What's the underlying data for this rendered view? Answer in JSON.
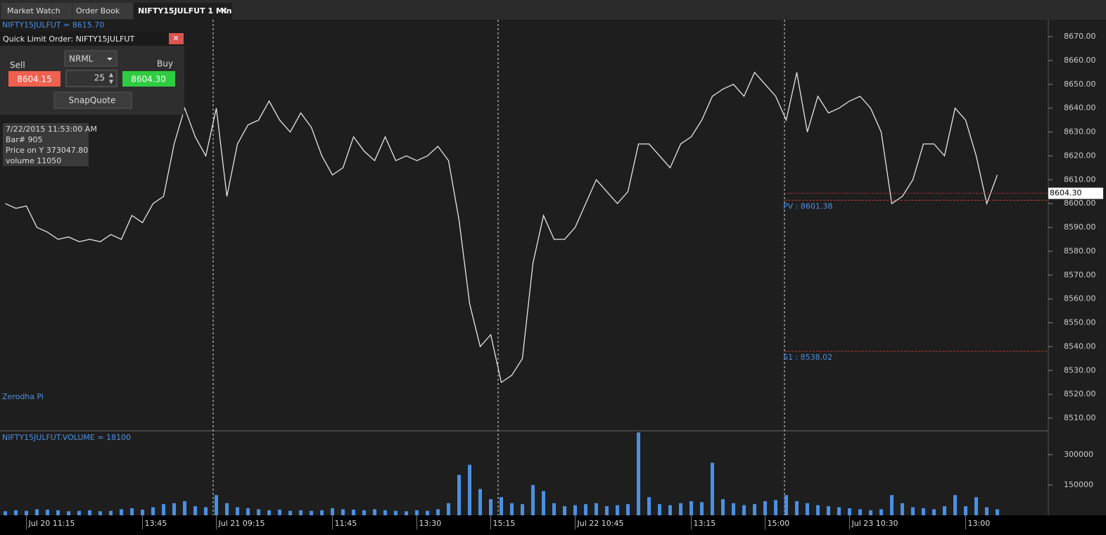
{
  "tabs": [
    "Market Watch",
    "Order Book",
    "NIFTY15JULFUT 1 Min"
  ],
  "order_panel": {
    "title": "Quick Limit Order:  NIFTY15JULFUT",
    "sell_label": "Sell",
    "buy_label": "Buy",
    "product": "NRML",
    "quantity": "25",
    "sell_price": "8604.15",
    "buy_price": "8604.30",
    "button": "SnapQuote"
  },
  "info_box": [
    "7/22/2015 11:53:00 AM",
    "Bar# 905",
    "Price on Y  373047.80",
    "volume  11050"
  ],
  "watermark": "Zerodha Pi",
  "chart_data": [
    {
      "type": "line",
      "title": "NIFTY15JULFUT = 8615.70",
      "color": "#e6e6e6",
      "categories": [
        null,
        null,
        "Jul 20 11:15",
        null,
        null,
        null,
        null,
        null,
        null,
        null,
        null,
        null,
        null,
        "13:45",
        null,
        null,
        null,
        null,
        null,
        null,
        "Jul 21 09:15",
        null,
        null,
        null,
        null,
        null,
        null,
        null,
        null,
        null,
        null,
        "11:45",
        null,
        null,
        null,
        null,
        null,
        null,
        null,
        "13:30",
        null,
        null,
        null,
        null,
        null,
        null,
        "15:15",
        null,
        null,
        null,
        null,
        null,
        null,
        null,
        "Jul 22 10:45",
        null,
        null,
        null,
        null,
        null,
        null,
        null,
        null,
        null,
        null,
        "13:15",
        null,
        null,
        null,
        null,
        null,
        null,
        "15:00",
        null,
        null,
        null,
        null,
        null,
        null,
        null,
        "Jul 23 10:30",
        null,
        null,
        null,
        null,
        null,
        null,
        null,
        null,
        null,
        null,
        "13:00",
        null,
        null,
        null,
        null,
        null,
        null,
        null
      ],
      "values": [
        8600,
        8598,
        8599,
        8590,
        8588,
        8585,
        8586,
        8584,
        8585,
        8584,
        8587,
        8585,
        8595,
        8592,
        8600,
        8603,
        8625,
        8640,
        8628,
        8620,
        8640,
        8603,
        8625,
        8633,
        8635,
        8643,
        8635,
        8630,
        8638,
        8632,
        8620,
        8612,
        8615,
        8628,
        8622,
        8618,
        8628,
        8618,
        8620,
        8618,
        8620,
        8624,
        8618,
        8593,
        8558,
        8540,
        8545,
        8525,
        8528,
        8535,
        8575,
        8595,
        8585,
        8585,
        8590,
        8600,
        8610,
        8605,
        8600,
        8605,
        8625,
        8625,
        8620,
        8615,
        8625,
        8628,
        8635,
        8645,
        8648,
        8650,
        8645,
        8655,
        8650,
        8645,
        8635,
        8655,
        8630,
        8645,
        8638,
        8640,
        8643,
        8645,
        8640,
        8630,
        8600,
        8603,
        8610,
        8625,
        8625,
        8620,
        8640,
        8635,
        8620,
        8600,
        8612,
        null,
        null,
        null,
        null
      ],
      "ylim": [
        8504.7,
        8677.1
      ],
      "yticks": [
        {
          "value": 8510,
          "label": "8510.00"
        },
        {
          "value": 8520,
          "label": "8520.00"
        },
        {
          "value": 8530,
          "label": "8530.00"
        },
        {
          "value": 8540,
          "label": "8540.00"
        },
        {
          "value": 8550,
          "label": "8550.00"
        },
        {
          "value": 8560,
          "label": "8560.00"
        },
        {
          "value": 8570,
          "label": "8570.00"
        },
        {
          "value": 8580,
          "label": "8580.00"
        },
        {
          "value": 8590,
          "label": "8590.00"
        },
        {
          "value": 8600,
          "label": "8600.00"
        },
        {
          "value": 8610,
          "label": "8610.00"
        },
        {
          "value": 8620,
          "label": "8620.00"
        },
        {
          "value": 8630,
          "label": "8630.00"
        },
        {
          "value": 8640,
          "label": "8640.00"
        },
        {
          "value": 8650,
          "label": "8650.00"
        },
        {
          "value": 8660,
          "label": "8660.00"
        },
        {
          "value": 8670,
          "label": "8670.00"
        }
      ],
      "levels": [
        {
          "label": "PV : 8601.38",
          "value": 8601.38
        },
        {
          "label": "S1 : 8538.02",
          "value": 8538.02
        }
      ],
      "last_price": {
        "value": 8604.3,
        "label": "8604.30"
      }
    },
    {
      "type": "bar",
      "title": "NIFTY15JULFUT.VOLUME = 18100",
      "color": "#4a90e2",
      "values": [
        20000,
        25000,
        22000,
        30000,
        28000,
        25000,
        20000,
        22000,
        25000,
        20000,
        22000,
        30000,
        35000,
        28000,
        40000,
        55000,
        60000,
        70000,
        45000,
        40000,
        100000,
        60000,
        40000,
        35000,
        30000,
        25000,
        28000,
        22000,
        25000,
        22000,
        25000,
        35000,
        30000,
        28000,
        25000,
        30000,
        25000,
        22000,
        20000,
        25000,
        22000,
        30000,
        60000,
        200000,
        250000,
        130000,
        80000,
        90000,
        60000,
        55000,
        150000,
        120000,
        60000,
        45000,
        50000,
        55000,
        60000,
        45000,
        50000,
        55000,
        410000,
        90000,
        55000,
        50000,
        60000,
        70000,
        65000,
        260000,
        80000,
        60000,
        50000,
        55000,
        70000,
        75000,
        100000,
        70000,
        60000,
        50000,
        45000,
        40000,
        35000,
        30000,
        25000,
        30000,
        100000,
        60000,
        40000,
        35000,
        30000,
        45000,
        100000,
        45000,
        90000,
        40000,
        30000,
        null,
        null,
        null,
        null
      ],
      "ylim": [
        0,
        418000
      ],
      "yticks": [
        150000,
        300000
      ]
    }
  ]
}
